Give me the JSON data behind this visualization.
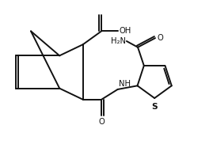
{
  "bg_color": "#ffffff",
  "line_color": "#111111",
  "text_color": "#111111",
  "lw": 1.4,
  "fs": 7.2,
  "figsize": [
    2.69,
    1.82
  ],
  "dpi": 100,
  "xlim": [
    0,
    10
  ],
  "ylim": [
    0,
    7
  ]
}
